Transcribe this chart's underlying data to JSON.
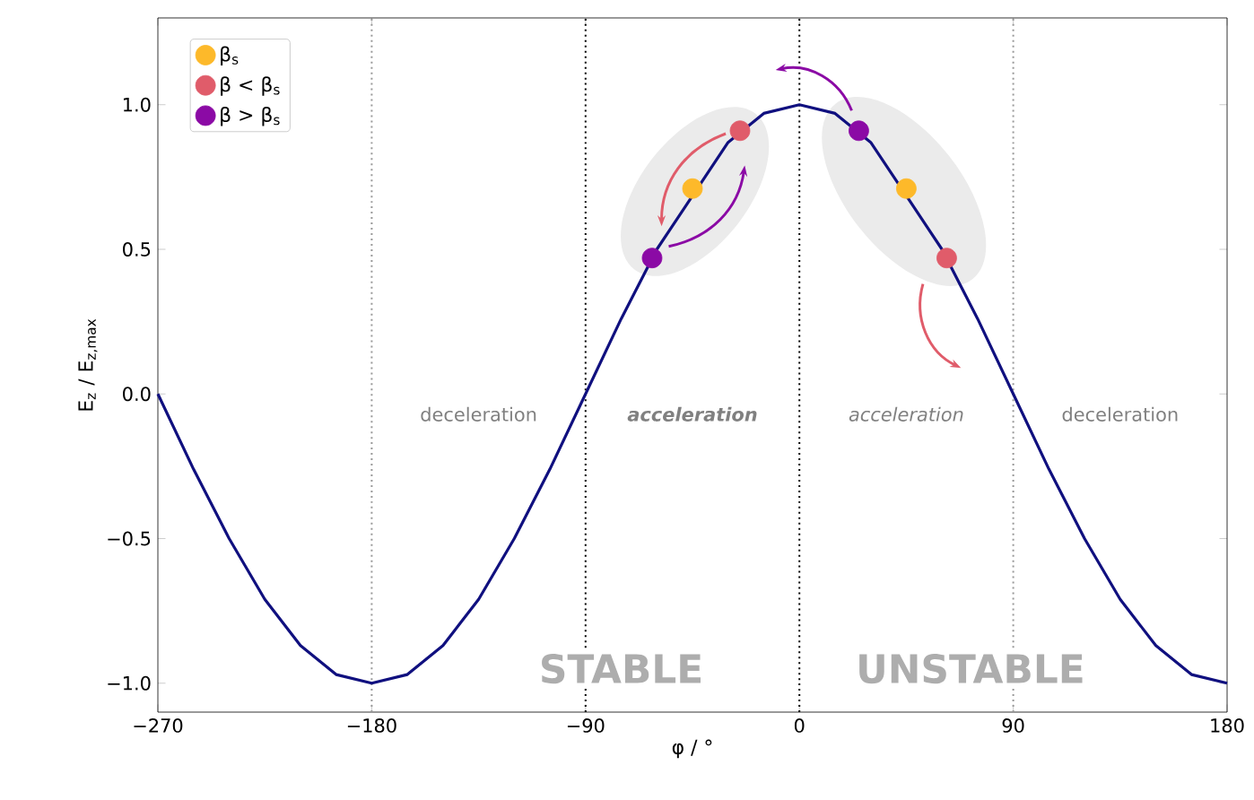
{
  "chart_data": {
    "type": "line",
    "xlabel": "φ / °",
    "ylabel": "E$_{z}$ / E$_{z,max}$",
    "xlim": [
      -270,
      180
    ],
    "ylim": [
      -1.1,
      1.3
    ],
    "xticks": [
      {
        "value": -270,
        "label": "−270"
      },
      {
        "value": -180,
        "label": "−180"
      },
      {
        "value": -90,
        "label": "−90"
      },
      0,
      90,
      180
    ],
    "yticks": [
      {
        "value": -1,
        "label": "−1.0"
      },
      {
        "value": -0.5,
        "label": "−0.5"
      },
      {
        "value": 0,
        "label": "0.0"
      },
      {
        "value": 0.5,
        "label": "0.5"
      },
      {
        "value": 1,
        "label": "1.0"
      }
    ],
    "legend": "top left",
    "series": [
      {
        "color": "#10107f",
        "x": [
          -270,
          -255,
          -240,
          -225,
          -210,
          -195,
          -180,
          -165,
          -150,
          -135,
          -120,
          -105,
          -90,
          -75,
          -60,
          -30,
          -15,
          0,
          15,
          30,
          60,
          75,
          90,
          105,
          120,
          135,
          150,
          165,
          180
        ],
        "values": [
          0,
          -0.26,
          -0.5,
          -0.71,
          -0.87,
          -0.97,
          -1,
          -0.97,
          -0.87,
          -0.71,
          -0.5,
          -0.26,
          0,
          0.26,
          0.5,
          0.87,
          0.97,
          1,
          0.97,
          0.87,
          0.5,
          0.26,
          0,
          -0.26,
          -0.5,
          -0.71,
          -0.87,
          -0.97,
          -1
        ]
      },
      {
        "type": "scatter",
        "name": "β$_{s}$",
        "color": "#fdb92a",
        "marker": "circle",
        "x": [
          -45,
          45
        ],
        "values": [
          0.71,
          0.71
        ]
      },
      {
        "type": "scatter",
        "name": "β < β$_{s}$",
        "color": "#e05c6a",
        "marker": "circle",
        "x": [
          -25,
          62
        ],
        "values": [
          0.91,
          0.47
        ]
      },
      {
        "type": "scatter",
        "name": "β > β$_{s}$",
        "color": "#8b0aa5",
        "marker": "circle",
        "x": [
          -62,
          25
        ],
        "values": [
          0.47,
          0.91
        ]
      }
    ],
    "ref_lines": [
      {
        "axis": "x",
        "value": -180,
        "color": "#999999",
        "line_style": "dotted"
      },
      {
        "axis": "x",
        "value": -90,
        "color": "#000000",
        "line_style": "dotted"
      },
      {
        "axis": "x",
        "value": 0,
        "color": "#000000",
        "line_style": "dotted"
      },
      {
        "axis": "x",
        "value": 90,
        "color": "#999999",
        "line_style": "dotted"
      }
    ],
    "annotations": [
      "deceleration",
      "acceleration",
      "acceleration",
      "deceleration",
      "STABLE",
      "UNSTABLE"
    ]
  }
}
